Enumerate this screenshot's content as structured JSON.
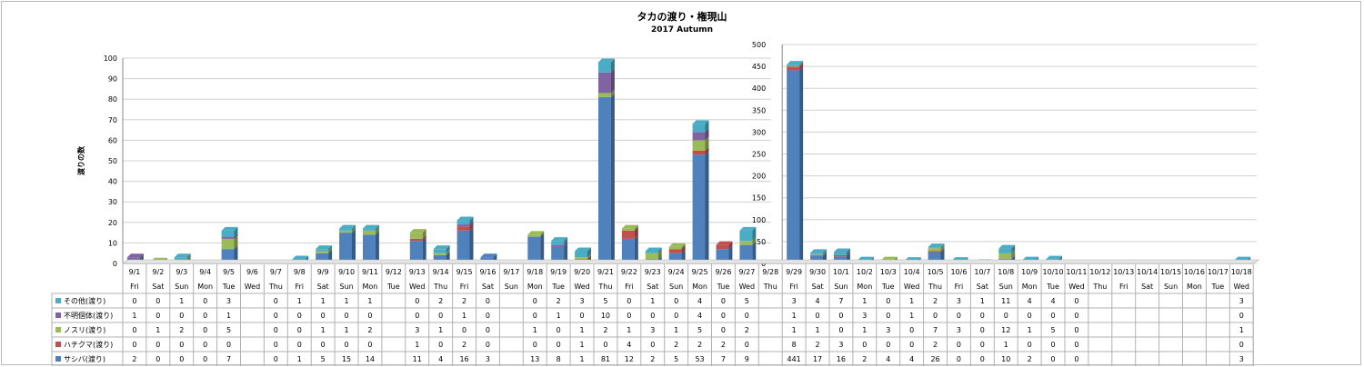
{
  "chart_data": {
    "type": "bar",
    "stacked": true,
    "title": "タカの渡り・権現山",
    "subtitle": "2017 Autumn",
    "ylabel": "渡りの数",
    "ylim_left": [
      0,
      100
    ],
    "ylim_right": [
      0,
      500
    ],
    "yticks_left": [
      "0",
      "10",
      "20",
      "30",
      "40",
      "50",
      "60",
      "70",
      "80",
      "90",
      "100"
    ],
    "yticks_right": [
      "0",
      "50",
      "100",
      "150",
      "200",
      "250",
      "300",
      "350",
      "400",
      "450",
      "500"
    ],
    "dates": [
      "9/1",
      "9/2",
      "9/3",
      "9/4",
      "9/5",
      "9/6",
      "9/7",
      "9/8",
      "9/9",
      "9/10",
      "9/11",
      "9/12",
      "9/13",
      "9/14",
      "9/15",
      "9/16",
      "9/17",
      "9/18",
      "9/19",
      "9/20",
      "9/21",
      "9/22",
      "9/23",
      "9/24",
      "9/25",
      "9/26",
      "9/27",
      "9/28",
      "9/29",
      "9/30",
      "10/1",
      "10/2",
      "10/3",
      "10/4",
      "10/5",
      "10/6",
      "10/7",
      "10/8",
      "10/9",
      "10/10",
      "10/11",
      "10/12",
      "10/13",
      "10/14",
      "10/15",
      "10/16",
      "10/17",
      "10/18"
    ],
    "weekdays": [
      "Fri",
      "Sat",
      "Sun",
      "Mon",
      "Tue",
      "Wed",
      "Thu",
      "Fri",
      "Sat",
      "Sun",
      "Mon",
      "Tue",
      "Wed",
      "Thu",
      "Fri",
      "Sat",
      "Sun",
      "Mon",
      "Tue",
      "Wed",
      "Thu",
      "Fri",
      "Sat",
      "Sun",
      "Mon",
      "Tue",
      "Wed",
      "Thu",
      "Fri",
      "Sat",
      "Sun",
      "Mon",
      "Tue",
      "Wed",
      "Thu",
      "Fri",
      "Sat",
      "Sun",
      "Mon",
      "Tue",
      "Wed",
      "Thu",
      "Fri",
      "Sat",
      "Sun",
      "Mon",
      "Tue",
      "Wed"
    ],
    "right_axis_range": [
      "9/29",
      "10/18"
    ],
    "series": [
      {
        "name": "その他(渡り)",
        "color": "#4bacc6",
        "values": [
          0,
          0,
          1,
          0,
          3,
          null,
          0,
          1,
          1,
          1,
          1,
          null,
          0,
          2,
          2,
          0,
          null,
          0,
          2,
          3,
          5,
          0,
          1,
          0,
          4,
          0,
          5,
          null,
          3,
          4,
          7,
          1,
          0,
          1,
          2,
          3,
          1,
          11,
          4,
          4,
          0,
          null,
          null,
          null,
          null,
          null,
          null,
          3
        ]
      },
      {
        "name": "不明個体(渡り)",
        "color": "#8064a2",
        "values": [
          1,
          0,
          0,
          0,
          1,
          null,
          0,
          0,
          0,
          0,
          0,
          null,
          0,
          0,
          1,
          0,
          null,
          0,
          1,
          0,
          10,
          0,
          0,
          0,
          4,
          0,
          0,
          null,
          1,
          0,
          0,
          3,
          0,
          1,
          0,
          0,
          0,
          0,
          0,
          0,
          0,
          null,
          null,
          null,
          null,
          null,
          null,
          0
        ]
      },
      {
        "name": "ノスリ(渡り)",
        "color": "#9bbb59",
        "values": [
          0,
          1,
          2,
          0,
          5,
          null,
          0,
          0,
          1,
          1,
          2,
          null,
          3,
          1,
          0,
          0,
          null,
          1,
          0,
          1,
          2,
          1,
          3,
          1,
          5,
          0,
          2,
          null,
          1,
          1,
          0,
          1,
          3,
          0,
          7,
          3,
          0,
          12,
          1,
          5,
          0,
          null,
          null,
          null,
          null,
          null,
          null,
          1
        ]
      },
      {
        "name": "ハチクマ(渡り)",
        "color": "#c0504d",
        "values": [
          0,
          0,
          0,
          0,
          0,
          null,
          0,
          0,
          0,
          0,
          0,
          null,
          1,
          0,
          2,
          0,
          null,
          0,
          0,
          1,
          0,
          4,
          0,
          2,
          2,
          2,
          0,
          null,
          8,
          2,
          3,
          0,
          0,
          0,
          2,
          0,
          0,
          1,
          0,
          0,
          0,
          null,
          null,
          null,
          null,
          null,
          null,
          0
        ]
      },
      {
        "name": "サシバ(渡り)",
        "color": "#4f81bd",
        "values": [
          2,
          0,
          0,
          0,
          7,
          null,
          0,
          1,
          5,
          15,
          14,
          null,
          11,
          4,
          16,
          3,
          null,
          13,
          8,
          1,
          81,
          12,
          2,
          5,
          53,
          7,
          9,
          null,
          441,
          17,
          16,
          2,
          4,
          4,
          26,
          0,
          0,
          10,
          2,
          0,
          0,
          null,
          null,
          null,
          null,
          null,
          null,
          3
        ]
      }
    ]
  }
}
